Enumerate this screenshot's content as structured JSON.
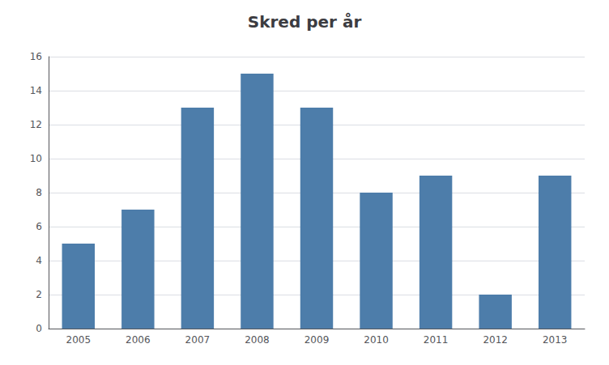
{
  "chart_data": {
    "type": "bar",
    "title": "Skred per år",
    "categories": [
      "2005",
      "2006",
      "2007",
      "2008",
      "2009",
      "2010",
      "2011",
      "2012",
      "2013"
    ],
    "values": [
      5,
      7,
      13,
      15,
      13,
      8,
      9,
      2,
      9
    ],
    "color": "#4d7daa",
    "ylim": [
      0,
      16
    ],
    "yticks": [
      0,
      2,
      4,
      6,
      8,
      10,
      12,
      14,
      16
    ],
    "grid": true
  }
}
